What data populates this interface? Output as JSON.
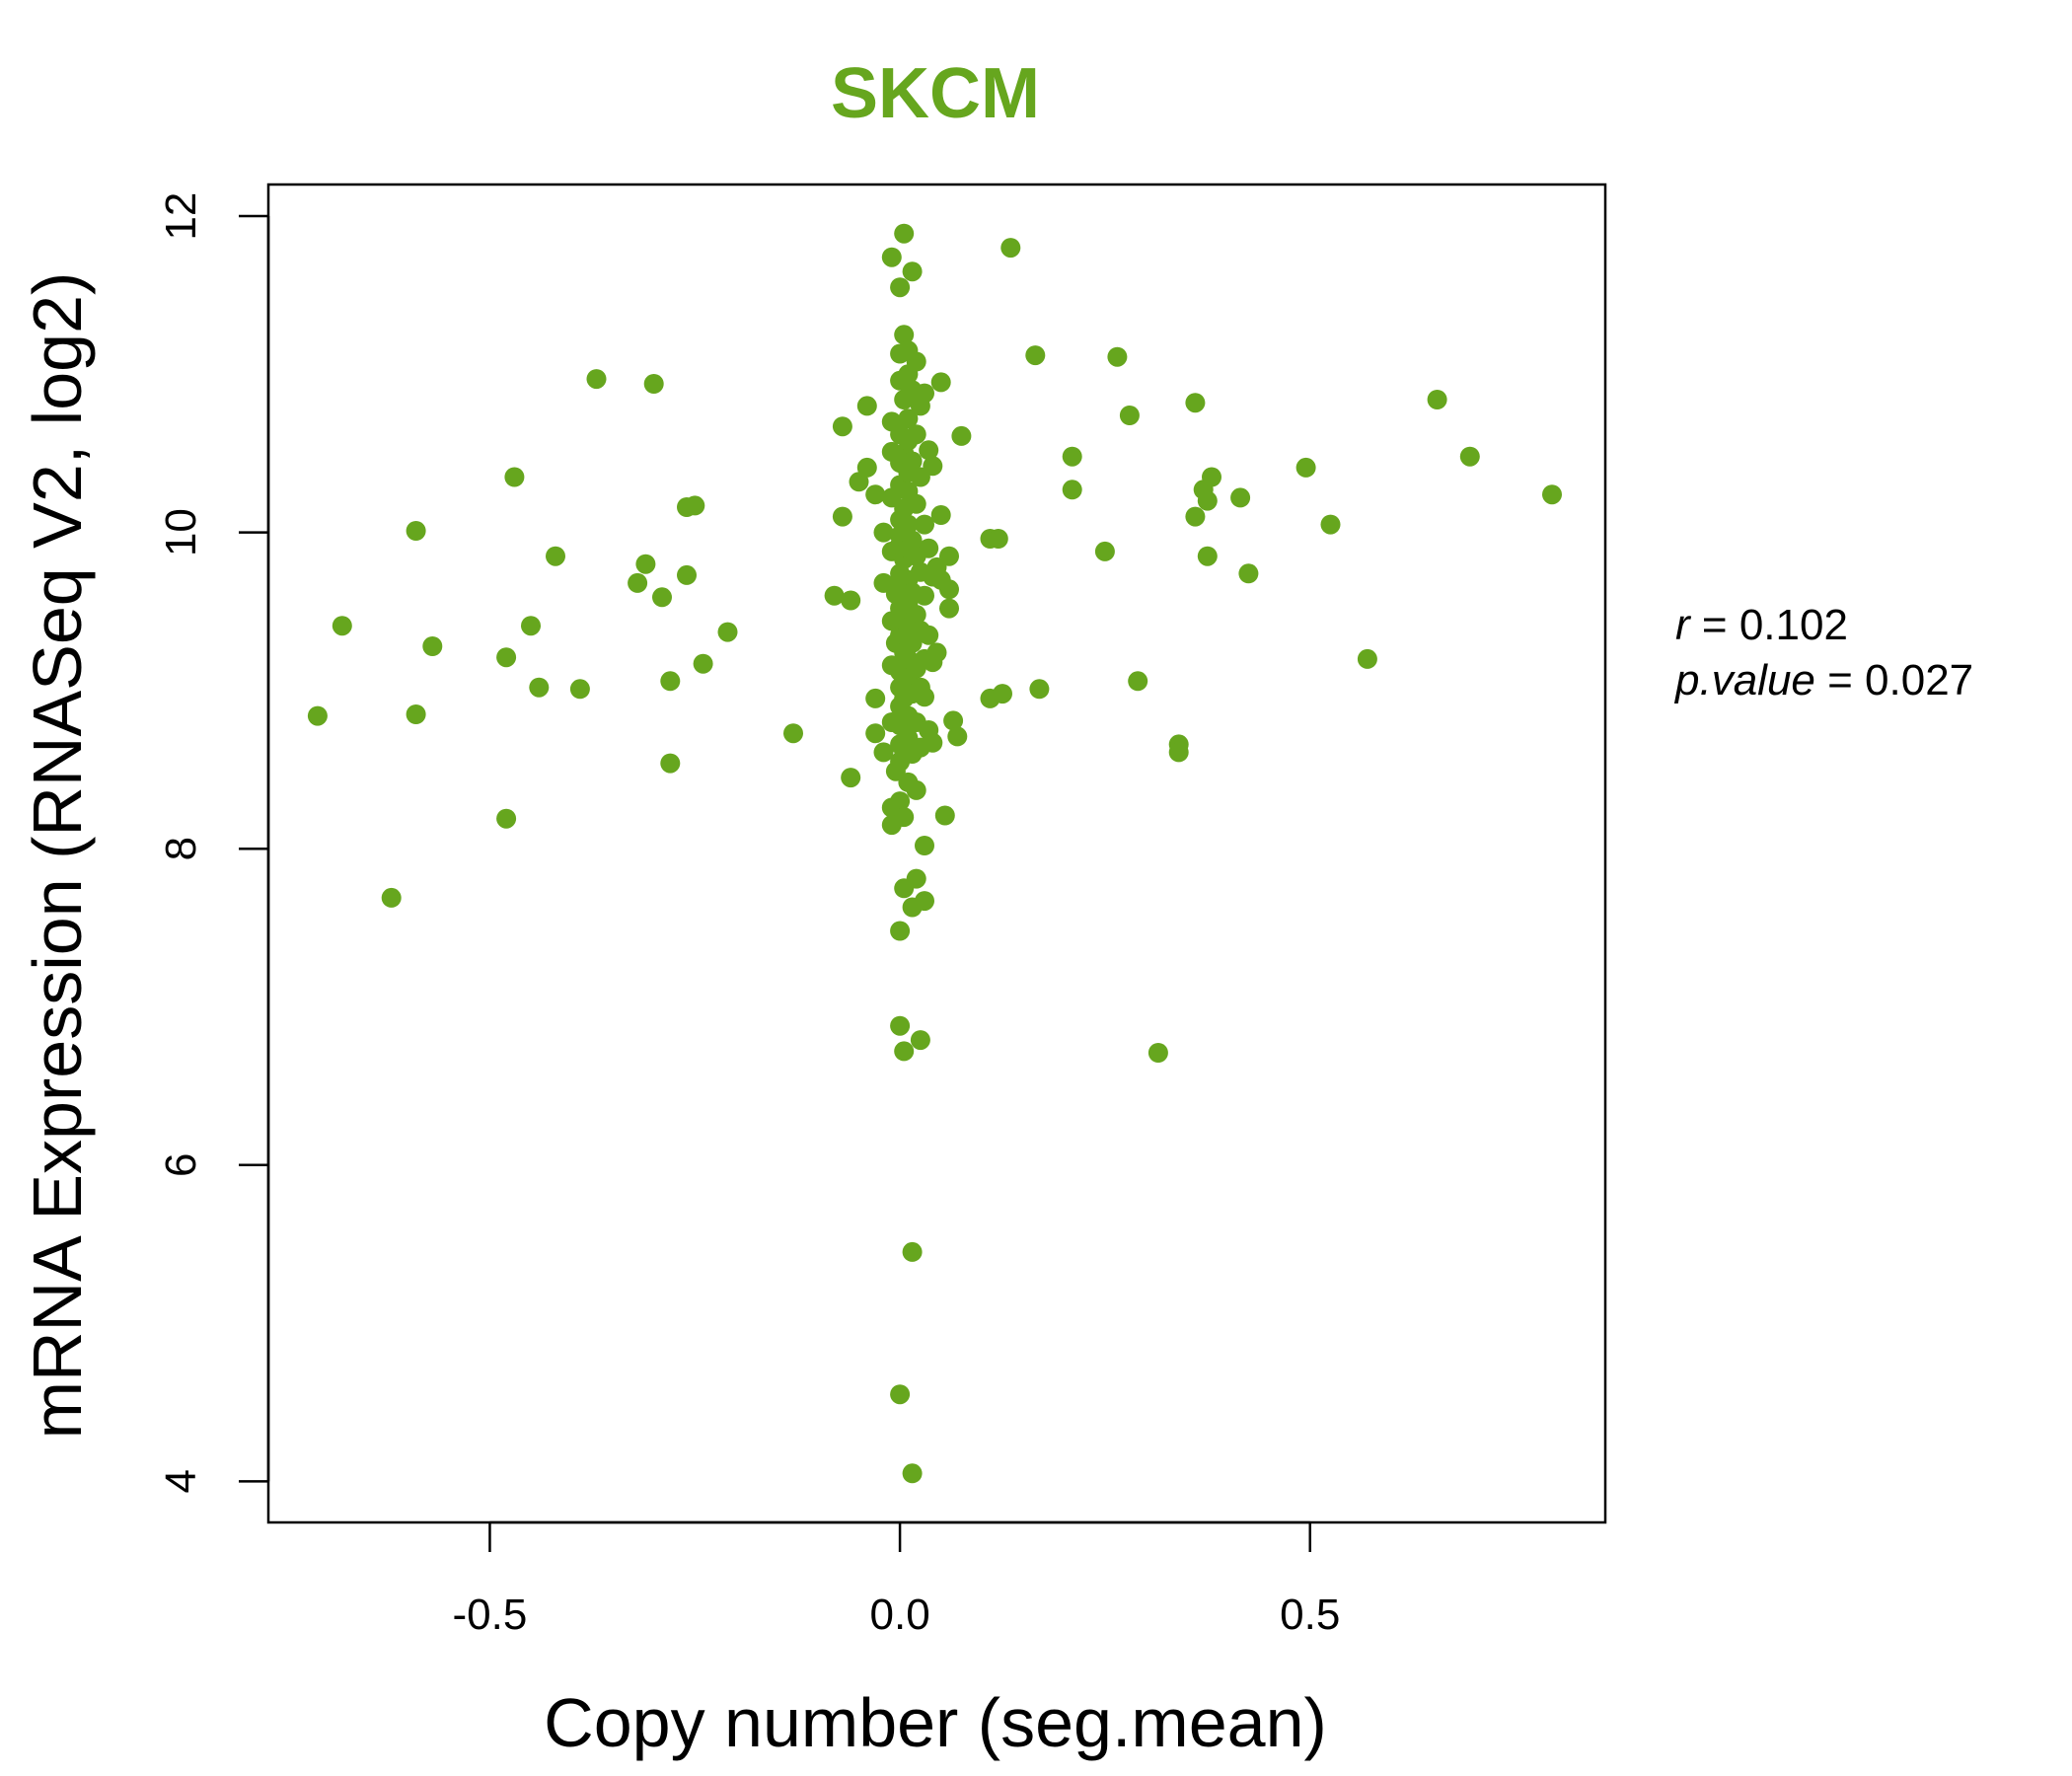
{
  "chart_data": {
    "type": "scatter",
    "title": "SKCM",
    "xlabel": "Copy number (seg.mean)",
    "ylabel": "mRNA Expression (RNASeq V2, log2)",
    "xlim": [
      -0.77,
      0.86
    ],
    "ylim": [
      3.74,
      12.2
    ],
    "xticks": [
      -0.5,
      0.0,
      0.5
    ],
    "xtick_labels": [
      "-0.5",
      "0.0",
      "0.5"
    ],
    "yticks": [
      4,
      6,
      8,
      10,
      12
    ],
    "ytick_labels": [
      "4",
      "6",
      "8",
      "10",
      "12"
    ],
    "grid": false,
    "point_color": "#66a61e",
    "stats": {
      "r_label": "r",
      "r_value": "0.102",
      "p_label": "p.value",
      "p_value": "0.027"
    },
    "points": [
      [
        -0.71,
        8.84
      ],
      [
        -0.68,
        9.41
      ],
      [
        -0.62,
        7.69
      ],
      [
        -0.59,
        10.01
      ],
      [
        -0.59,
        8.85
      ],
      [
        -0.57,
        9.28
      ],
      [
        -0.48,
        9.21
      ],
      [
        -0.48,
        8.19
      ],
      [
        -0.47,
        10.35
      ],
      [
        -0.45,
        9.41
      ],
      [
        -0.44,
        9.02
      ],
      [
        -0.42,
        9.85
      ],
      [
        -0.39,
        9.01
      ],
      [
        -0.37,
        10.97
      ],
      [
        -0.32,
        9.68
      ],
      [
        -0.31,
        9.8
      ],
      [
        -0.3,
        10.94
      ],
      [
        -0.29,
        9.59
      ],
      [
        -0.28,
        9.06
      ],
      [
        -0.28,
        8.54
      ],
      [
        -0.26,
        10.16
      ],
      [
        -0.26,
        9.73
      ],
      [
        -0.25,
        10.17
      ],
      [
        -0.24,
        9.17
      ],
      [
        -0.21,
        9.37
      ],
      [
        -0.13,
        8.73
      ],
      [
        -0.08,
        9.6
      ],
      [
        -0.07,
        10.67
      ],
      [
        -0.07,
        10.1
      ],
      [
        -0.06,
        9.57
      ],
      [
        -0.06,
        8.45
      ],
      [
        -0.05,
        10.32
      ],
      [
        -0.04,
        10.41
      ],
      [
        -0.04,
        10.8
      ],
      [
        -0.03,
        8.95
      ],
      [
        -0.03,
        8.73
      ],
      [
        -0.03,
        10.24
      ],
      [
        -0.02,
        10.0
      ],
      [
        -0.02,
        9.68
      ],
      [
        -0.02,
        8.61
      ],
      [
        -0.01,
        10.51
      ],
      [
        -0.01,
        9.88
      ],
      [
        -0.01,
        9.44
      ],
      [
        -0.01,
        9.16
      ],
      [
        -0.01,
        8.8
      ],
      [
        -0.01,
        8.26
      ],
      [
        -0.01,
        8.15
      ],
      [
        -0.01,
        11.74
      ],
      [
        -0.01,
        10.7
      ],
      [
        -0.01,
        10.22
      ],
      [
        -0.005,
        9.61
      ],
      [
        -0.005,
        9.3
      ],
      [
        -0.005,
        8.49
      ],
      [
        0.0,
        10.96
      ],
      [
        0.0,
        10.44
      ],
      [
        0.0,
        10.08
      ],
      [
        0.0,
        9.92
      ],
      [
        0.0,
        9.74
      ],
      [
        0.0,
        9.52
      ],
      [
        0.0,
        9.35
      ],
      [
        0.0,
        9.02
      ],
      [
        0.0,
        8.9
      ],
      [
        0.0,
        8.66
      ],
      [
        0.0,
        8.3
      ],
      [
        0.0,
        11.55
      ],
      [
        0.0,
        11.13
      ],
      [
        0.0,
        10.62
      ],
      [
        0.0,
        10.3
      ],
      [
        0.0,
        9.98
      ],
      [
        0.0,
        9.66
      ],
      [
        0.0,
        9.45
      ],
      [
        0.0,
        9.12
      ],
      [
        0.0,
        8.78
      ],
      [
        0.0,
        8.55
      ],
      [
        0.0,
        4.55
      ],
      [
        0.0,
        6.88
      ],
      [
        0.0,
        7.48
      ],
      [
        0.005,
        11.25
      ],
      [
        0.005,
        10.84
      ],
      [
        0.005,
        10.5
      ],
      [
        0.005,
        10.15
      ],
      [
        0.005,
        9.83
      ],
      [
        0.005,
        9.58
      ],
      [
        0.005,
        9.24
      ],
      [
        0.005,
        8.95
      ],
      [
        0.005,
        8.62
      ],
      [
        0.005,
        8.2
      ],
      [
        0.005,
        7.75
      ],
      [
        0.005,
        6.72
      ],
      [
        0.005,
        11.89
      ],
      [
        0.01,
        11.0
      ],
      [
        0.01,
        10.72
      ],
      [
        0.01,
        10.38
      ],
      [
        0.01,
        10.05
      ],
      [
        0.01,
        9.7
      ],
      [
        0.01,
        9.4
      ],
      [
        0.01,
        9.08
      ],
      [
        0.01,
        8.84
      ],
      [
        0.01,
        8.42
      ],
      [
        0.01,
        11.15
      ],
      [
        0.01,
        10.58
      ],
      [
        0.01,
        10.26
      ],
      [
        0.01,
        9.9
      ],
      [
        0.01,
        9.55
      ],
      [
        0.01,
        9.2
      ],
      [
        0.01,
        8.7
      ],
      [
        0.015,
        11.65
      ],
      [
        0.015,
        10.9
      ],
      [
        0.015,
        10.45
      ],
      [
        0.015,
        9.95
      ],
      [
        0.015,
        9.62
      ],
      [
        0.015,
        9.3
      ],
      [
        0.015,
        8.98
      ],
      [
        0.015,
        8.6
      ],
      [
        0.015,
        7.63
      ],
      [
        0.015,
        5.45
      ],
      [
        0.015,
        4.05
      ],
      [
        0.02,
        11.08
      ],
      [
        0.02,
        10.62
      ],
      [
        0.02,
        10.18
      ],
      [
        0.02,
        9.85
      ],
      [
        0.02,
        9.48
      ],
      [
        0.02,
        9.14
      ],
      [
        0.02,
        8.8
      ],
      [
        0.02,
        8.37
      ],
      [
        0.02,
        7.81
      ],
      [
        0.025,
        10.8
      ],
      [
        0.025,
        10.35
      ],
      [
        0.025,
        9.75
      ],
      [
        0.025,
        9.38
      ],
      [
        0.025,
        9.02
      ],
      [
        0.025,
        8.64
      ],
      [
        0.025,
        6.79
      ],
      [
        0.03,
        10.88
      ],
      [
        0.03,
        10.05
      ],
      [
        0.03,
        9.6
      ],
      [
        0.03,
        9.2
      ],
      [
        0.03,
        8.96
      ],
      [
        0.03,
        7.67
      ],
      [
        0.03,
        8.02
      ],
      [
        0.035,
        10.52
      ],
      [
        0.035,
        9.9
      ],
      [
        0.035,
        9.35
      ],
      [
        0.035,
        8.75
      ],
      [
        0.04,
        10.42
      ],
      [
        0.04,
        9.72
      ],
      [
        0.04,
        9.18
      ],
      [
        0.04,
        8.67
      ],
      [
        0.045,
        9.78
      ],
      [
        0.045,
        9.24
      ],
      [
        0.05,
        10.95
      ],
      [
        0.05,
        10.11
      ],
      [
        0.05,
        9.7
      ],
      [
        0.055,
        8.21
      ],
      [
        0.06,
        9.85
      ],
      [
        0.06,
        9.64
      ],
      [
        0.06,
        9.52
      ],
      [
        0.065,
        8.81
      ],
      [
        0.07,
        8.71
      ],
      [
        0.075,
        10.61
      ],
      [
        0.11,
        9.96
      ],
      [
        0.11,
        8.95
      ],
      [
        0.12,
        9.96
      ],
      [
        0.125,
        8.98
      ],
      [
        0.135,
        11.8
      ],
      [
        0.165,
        11.12
      ],
      [
        0.17,
        9.01
      ],
      [
        0.21,
        10.48
      ],
      [
        0.21,
        10.27
      ],
      [
        0.25,
        9.88
      ],
      [
        0.265,
        11.11
      ],
      [
        0.28,
        10.74
      ],
      [
        0.29,
        9.06
      ],
      [
        0.315,
        6.71
      ],
      [
        0.34,
        8.66
      ],
      [
        0.34,
        8.61
      ],
      [
        0.36,
        10.82
      ],
      [
        0.36,
        10.1
      ],
      [
        0.37,
        10.27
      ],
      [
        0.375,
        10.2
      ],
      [
        0.375,
        9.85
      ],
      [
        0.38,
        10.35
      ],
      [
        0.415,
        10.22
      ],
      [
        0.425,
        9.74
      ],
      [
        0.495,
        10.41
      ],
      [
        0.525,
        10.05
      ],
      [
        0.57,
        9.2
      ],
      [
        0.655,
        10.84
      ],
      [
        0.695,
        10.48
      ],
      [
        0.795,
        10.24
      ]
    ]
  }
}
